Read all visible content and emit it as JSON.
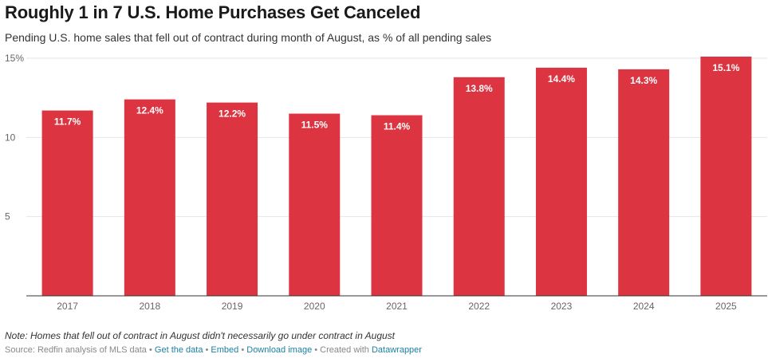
{
  "header": {
    "title": "Roughly 1 in 7 U.S. Home Purchases Get Canceled",
    "subtitle": "Pending U.S. home sales that fell out of contract during month of August, as % of all pending sales"
  },
  "chart_data": {
    "type": "bar",
    "title": "Roughly 1 in 7 U.S. Home Purchases Get Canceled",
    "subtitle": "Pending U.S. home sales that fell out of contract during month of August, as % of all pending sales",
    "categories": [
      "2017",
      "2018",
      "2019",
      "2020",
      "2021",
      "2022",
      "2023",
      "2024",
      "2025"
    ],
    "values": [
      11.7,
      12.4,
      12.2,
      11.5,
      11.4,
      13.8,
      14.4,
      14.3,
      15.1
    ],
    "value_labels": [
      "11.7%",
      "12.4%",
      "12.2%",
      "11.5%",
      "11.4%",
      "13.8%",
      "14.4%",
      "14.3%",
      "15.1%"
    ],
    "y_ticks": [
      5,
      10,
      15
    ],
    "y_tick_labels": [
      "5",
      "10",
      "15%"
    ],
    "ylim": [
      0,
      15
    ],
    "xlabel": "",
    "ylabel": "",
    "bar_color": "#dc3440",
    "grid": true,
    "legend": false
  },
  "footer": {
    "note": "Note: Homes that fell out of contract in August didn't necessarily go under contract in August",
    "source_text": "Source: Redfin analysis of MLS data",
    "separator": " • ",
    "get_data_label": "Get the data",
    "embed_label": "Embed",
    "download_label": "Download image",
    "created_with_text": "Created with",
    "datawrapper_label": "Datawrapper"
  },
  "colors": {
    "bar": "#dc3440",
    "link": "#1d81a2",
    "grid": "#e6e6e6",
    "axis": "#333333"
  }
}
